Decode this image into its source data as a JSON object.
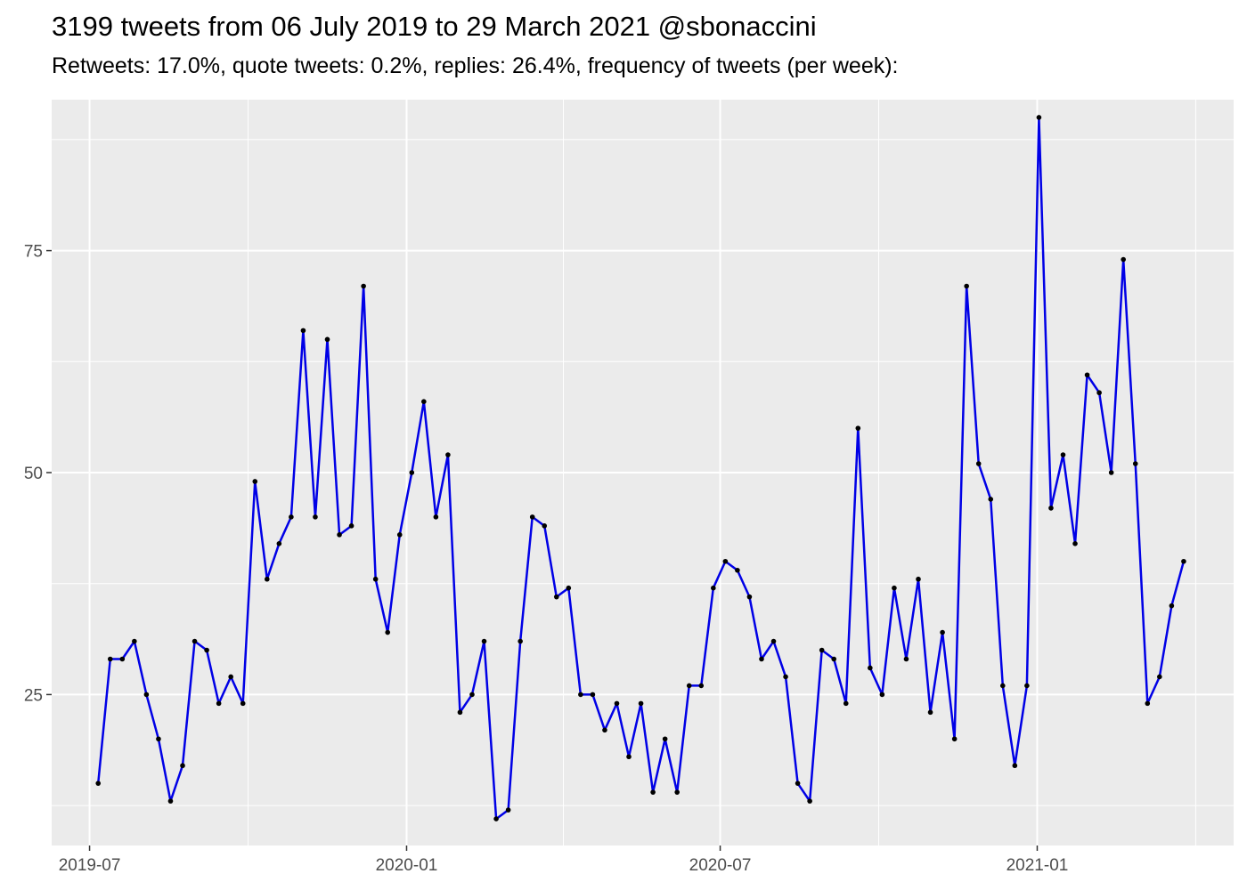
{
  "chart_data": {
    "type": "line",
    "title": "3199 tweets from 06 July 2019 to 29 March 2021 @sbonaccini",
    "subtitle": "Retweets: 17.0%, quote tweets: 0.2%, replies: 26.4%, frequency of tweets (per week):",
    "xlabel": "",
    "ylabel": "",
    "x_ticks": [
      "2019-07",
      "2020-01",
      "2020-07",
      "2021-01"
    ],
    "y_ticks": [
      25,
      50,
      75
    ],
    "ylim": [
      8,
      92
    ],
    "grid": true,
    "line_color": "#0000e6",
    "point_color": "#000000",
    "panel_background": "#ebebeb",
    "series": [
      {
        "x": [
          "2019-07-06",
          "2019-07-13",
          "2019-07-20",
          "2019-07-27",
          "2019-08-03",
          "2019-08-10",
          "2019-08-17",
          "2019-08-24",
          "2019-08-31",
          "2019-09-07",
          "2019-09-14",
          "2019-09-21",
          "2019-09-28",
          "2019-10-05",
          "2019-10-12",
          "2019-10-19",
          "2019-10-26",
          "2019-11-02",
          "2019-11-09",
          "2019-11-16",
          "2019-11-23",
          "2019-11-30",
          "2019-12-07",
          "2019-12-14",
          "2019-12-21",
          "2019-12-28",
          "2020-01-04",
          "2020-01-11",
          "2020-01-18",
          "2020-01-25",
          "2020-02-01",
          "2020-02-08",
          "2020-02-15",
          "2020-02-22",
          "2020-02-29",
          "2020-03-07",
          "2020-03-14",
          "2020-03-21",
          "2020-03-28",
          "2020-04-04",
          "2020-04-11",
          "2020-04-18",
          "2020-04-25",
          "2020-05-02",
          "2020-05-09",
          "2020-05-16",
          "2020-05-23",
          "2020-05-30",
          "2020-06-06",
          "2020-06-13",
          "2020-06-20",
          "2020-06-27",
          "2020-07-04",
          "2020-07-11",
          "2020-07-18",
          "2020-07-25",
          "2020-08-01",
          "2020-08-08",
          "2020-08-15",
          "2020-08-22",
          "2020-08-29",
          "2020-09-05",
          "2020-09-12",
          "2020-09-19",
          "2020-09-26",
          "2020-10-03",
          "2020-10-10",
          "2020-10-17",
          "2020-10-24",
          "2020-10-31",
          "2020-11-07",
          "2020-11-14",
          "2020-11-21",
          "2020-11-28",
          "2020-12-05",
          "2020-12-12",
          "2020-12-19",
          "2020-12-26",
          "2021-01-02",
          "2021-01-09",
          "2021-01-16",
          "2021-01-23",
          "2021-01-30",
          "2021-02-06",
          "2021-02-13",
          "2021-02-20",
          "2021-02-27",
          "2021-03-06",
          "2021-03-13",
          "2021-03-20",
          "2021-03-27"
        ],
        "y": [
          15,
          29,
          29,
          31,
          25,
          20,
          13,
          17,
          31,
          30,
          24,
          27,
          24,
          49,
          38,
          42,
          45,
          66,
          45,
          65,
          43,
          44,
          71,
          38,
          32,
          43,
          50,
          58,
          45,
          52,
          23,
          25,
          31,
          11,
          12,
          31,
          45,
          44,
          36,
          37,
          25,
          25,
          21,
          24,
          18,
          24,
          14,
          20,
          14,
          26,
          26,
          37,
          40,
          39,
          36,
          29,
          31,
          27,
          15,
          13,
          30,
          29,
          24,
          55,
          28,
          25,
          37,
          29,
          38,
          23,
          32,
          20,
          71,
          51,
          47,
          26,
          17,
          26,
          90,
          46,
          52,
          42,
          61,
          59,
          50,
          74,
          51,
          24,
          27,
          35,
          40
        ]
      }
    ]
  }
}
